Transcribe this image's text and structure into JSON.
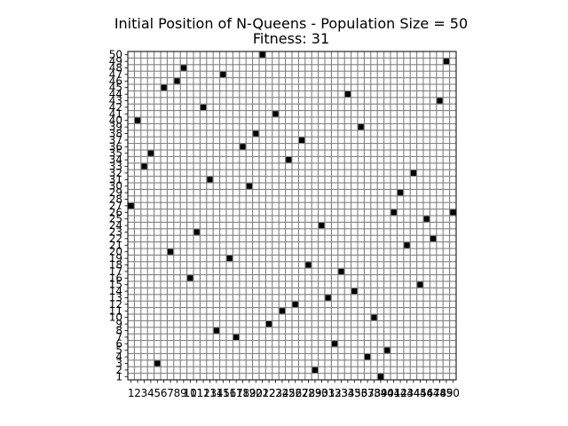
{
  "chart_data": {
    "type": "heatmap",
    "title": "Initial Position of N-Queens - Population Size = 50",
    "subtitle": "Fitness: 31",
    "xlabel": "",
    "ylabel": "",
    "board_size": 50,
    "x_ticks": [
      1,
      2,
      3,
      4,
      5,
      6,
      7,
      8,
      9,
      10,
      11,
      12,
      13,
      14,
      15,
      16,
      17,
      18,
      19,
      20,
      21,
      22,
      23,
      24,
      25,
      26,
      27,
      28,
      29,
      30,
      31,
      32,
      33,
      34,
      35,
      36,
      37,
      38,
      39,
      40,
      41,
      42,
      43,
      44,
      45,
      46,
      47,
      48,
      49,
      50
    ],
    "y_ticks": [
      1,
      2,
      3,
      4,
      5,
      6,
      7,
      8,
      9,
      10,
      11,
      12,
      13,
      14,
      15,
      16,
      17,
      18,
      19,
      20,
      21,
      22,
      23,
      24,
      25,
      26,
      27,
      28,
      29,
      30,
      31,
      32,
      33,
      34,
      35,
      36,
      37,
      38,
      39,
      40,
      41,
      42,
      43,
      44,
      45,
      46,
      47,
      48,
      49,
      50
    ],
    "queens": [
      {
        "x": 1,
        "y": 27
      },
      {
        "x": 2,
        "y": 40
      },
      {
        "x": 3,
        "y": 33
      },
      {
        "x": 4,
        "y": 35
      },
      {
        "x": 5,
        "y": 3
      },
      {
        "x": 6,
        "y": 45
      },
      {
        "x": 7,
        "y": 20
      },
      {
        "x": 8,
        "y": 46
      },
      {
        "x": 9,
        "y": 48
      },
      {
        "x": 10,
        "y": 16
      },
      {
        "x": 11,
        "y": 23
      },
      {
        "x": 12,
        "y": 42
      },
      {
        "x": 13,
        "y": 31
      },
      {
        "x": 14,
        "y": 8
      },
      {
        "x": 15,
        "y": 47
      },
      {
        "x": 16,
        "y": 19
      },
      {
        "x": 17,
        "y": 7
      },
      {
        "x": 18,
        "y": 36
      },
      {
        "x": 19,
        "y": 30
      },
      {
        "x": 20,
        "y": 38
      },
      {
        "x": 21,
        "y": 50
      },
      {
        "x": 22,
        "y": 9
      },
      {
        "x": 23,
        "y": 41
      },
      {
        "x": 24,
        "y": 11
      },
      {
        "x": 25,
        "y": 34
      },
      {
        "x": 26,
        "y": 12
      },
      {
        "x": 27,
        "y": 37
      },
      {
        "x": 28,
        "y": 18
      },
      {
        "x": 29,
        "y": 2
      },
      {
        "x": 30,
        "y": 24
      },
      {
        "x": 31,
        "y": 13
      },
      {
        "x": 32,
        "y": 6
      },
      {
        "x": 33,
        "y": 17
      },
      {
        "x": 34,
        "y": 44
      },
      {
        "x": 35,
        "y": 14
      },
      {
        "x": 36,
        "y": 39
      },
      {
        "x": 37,
        "y": 4
      },
      {
        "x": 38,
        "y": 10
      },
      {
        "x": 39,
        "y": 1
      },
      {
        "x": 40,
        "y": 5
      },
      {
        "x": 41,
        "y": 26
      },
      {
        "x": 42,
        "y": 29
      },
      {
        "x": 43,
        "y": 21
      },
      {
        "x": 44,
        "y": 32
      },
      {
        "x": 45,
        "y": 15
      },
      {
        "x": 46,
        "y": 25
      },
      {
        "x": 47,
        "y": 22
      },
      {
        "x": 48,
        "y": 43
      },
      {
        "x": 49,
        "y": 49
      },
      {
        "x": 50,
        "y": 26
      }
    ],
    "colors": {
      "background": "#808080",
      "empty_square": "#ffffff",
      "queen": "#000000"
    },
    "grid": true,
    "legend": "none"
  }
}
